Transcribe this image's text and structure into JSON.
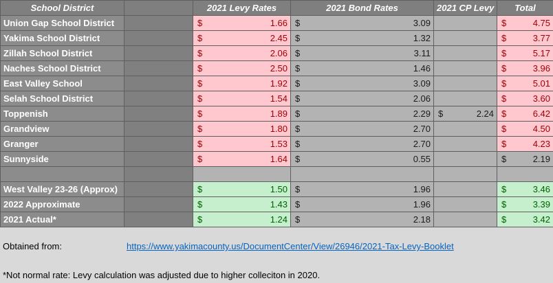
{
  "headers": {
    "district": "School District",
    "levy": "2021 Levy Rates",
    "bond": "2021 Bond Rates",
    "cp": "2021 CP Levy",
    "total": "Total"
  },
  "currency_symbol": "$",
  "rows": [
    {
      "name": "Union Gap School District",
      "levy": "1.66",
      "bond": "3.09",
      "cp": "",
      "total": "4.75",
      "levy_style": "red",
      "total_style": "red"
    },
    {
      "name": "Yakima School District",
      "levy": "2.45",
      "bond": "1.32",
      "cp": "",
      "total": "3.77",
      "levy_style": "red",
      "total_style": "red"
    },
    {
      "name": "Zillah School District",
      "levy": "2.06",
      "bond": "3.11",
      "cp": "",
      "total": "5.17",
      "levy_style": "red",
      "total_style": "red"
    },
    {
      "name": "Naches School District",
      "levy": "2.50",
      "bond": "1.46",
      "cp": "",
      "total": "3.96",
      "levy_style": "red",
      "total_style": "red"
    },
    {
      "name": "East Valley School",
      "levy": "1.92",
      "bond": "3.09",
      "cp": "",
      "total": "5.01",
      "levy_style": "red",
      "total_style": "red"
    },
    {
      "name": "Selah School District",
      "levy": "1.54",
      "bond": "2.06",
      "cp": "",
      "total": "3.60",
      "levy_style": "red",
      "total_style": "red"
    },
    {
      "name": "Toppenish",
      "levy": "1.89",
      "bond": "2.29",
      "cp": "2.24",
      "total": "6.42",
      "levy_style": "red",
      "total_style": "red"
    },
    {
      "name": "Grandview",
      "levy": "1.80",
      "bond": "2.70",
      "cp": "",
      "total": "4.50",
      "levy_style": "red",
      "total_style": "red"
    },
    {
      "name": "Granger",
      "levy": "1.53",
      "bond": "2.70",
      "cp": "",
      "total": "4.23",
      "levy_style": "red",
      "total_style": "red"
    },
    {
      "name": "Sunnyside",
      "levy": "1.64",
      "bond": "0.55",
      "cp": "",
      "total": "2.19",
      "levy_style": "red",
      "total_style": "plain"
    }
  ],
  "summary_rows": [
    {
      "name": "West Valley 23-26 (Approx)",
      "levy": "1.50",
      "bond": "1.96",
      "cp": "",
      "total": "3.46"
    },
    {
      "name": "2022 Approximate",
      "levy": "1.43",
      "bond": "1.96",
      "cp": "",
      "total": "3.39"
    },
    {
      "name": "2021 Actual*",
      "levy": "1.24",
      "bond": "2.18",
      "cp": "",
      "total": "3.42"
    }
  ],
  "notes": {
    "obtained_label": "Obtained from:",
    "source_link": "https://www.yakimacounty.us/DocumentCenter/View/26946/2021-Tax-Levy-Booklet",
    "footnote": "*Not normal rate: Levy calculation was adjusted due to higher colleciton in 2020."
  },
  "colors": {
    "red_fill": "#ffc7ce",
    "red_text": "#9c0006",
    "green_fill": "#c6efce",
    "green_text": "#006100",
    "link": "#0563c1"
  }
}
